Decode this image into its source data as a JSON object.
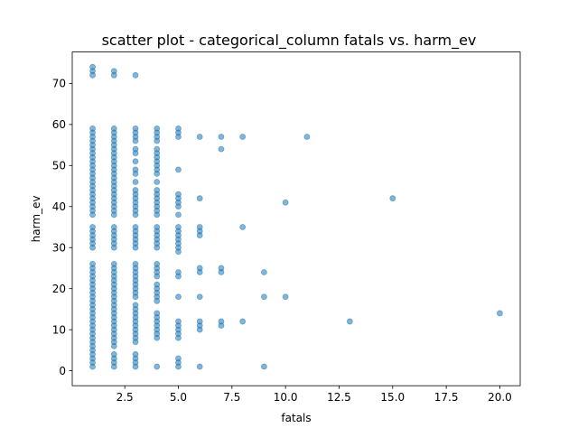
{
  "chart_data": {
    "type": "scatter",
    "title": "scatter plot - categorical_column fatals vs. harm_ev",
    "xlabel": "fatals",
    "ylabel": "harm_ev",
    "xlim": [
      0.05,
      20.95
    ],
    "ylim": [
      -3.65,
      77.65
    ],
    "xticks": [
      2.5,
      5.0,
      7.5,
      10.0,
      12.5,
      15.0,
      17.5,
      20.0
    ],
    "xtick_labels": [
      "2.5",
      "5.0",
      "7.5",
      "10.0",
      "12.5",
      "15.0",
      "17.5",
      "20.0"
    ],
    "yticks": [
      0,
      10,
      20,
      30,
      40,
      50,
      60,
      70
    ],
    "ytick_labels": [
      "0",
      "10",
      "20",
      "30",
      "40",
      "50",
      "60",
      "70"
    ],
    "grid": false,
    "marker_color": "#1f77b4",
    "marker_alpha": 0.55,
    "points": [
      [
        1,
        1
      ],
      [
        1,
        2
      ],
      [
        1,
        3
      ],
      [
        1,
        4
      ],
      [
        1,
        5
      ],
      [
        1,
        6
      ],
      [
        1,
        7
      ],
      [
        1,
        8
      ],
      [
        1,
        9
      ],
      [
        1,
        10
      ],
      [
        1,
        11
      ],
      [
        1,
        12
      ],
      [
        1,
        13
      ],
      [
        1,
        14
      ],
      [
        1,
        15
      ],
      [
        1,
        16
      ],
      [
        1,
        17
      ],
      [
        1,
        18
      ],
      [
        1,
        19
      ],
      [
        1,
        20
      ],
      [
        1,
        21
      ],
      [
        1,
        22
      ],
      [
        1,
        23
      ],
      [
        1,
        24
      ],
      [
        1,
        25
      ],
      [
        1,
        26
      ],
      [
        1,
        30
      ],
      [
        1,
        31
      ],
      [
        1,
        32
      ],
      [
        1,
        33
      ],
      [
        1,
        34
      ],
      [
        1,
        35
      ],
      [
        1,
        38
      ],
      [
        1,
        39
      ],
      [
        1,
        40
      ],
      [
        1,
        41
      ],
      [
        1,
        42
      ],
      [
        1,
        43
      ],
      [
        1,
        44
      ],
      [
        1,
        45
      ],
      [
        1,
        46
      ],
      [
        1,
        47
      ],
      [
        1,
        48
      ],
      [
        1,
        49
      ],
      [
        1,
        50
      ],
      [
        1,
        51
      ],
      [
        1,
        52
      ],
      [
        1,
        53
      ],
      [
        1,
        54
      ],
      [
        1,
        55
      ],
      [
        1,
        56
      ],
      [
        1,
        57
      ],
      [
        1,
        58
      ],
      [
        1,
        59
      ],
      [
        1,
        72
      ],
      [
        1,
        73
      ],
      [
        1,
        74
      ],
      [
        2,
        1
      ],
      [
        2,
        2
      ],
      [
        2,
        3
      ],
      [
        2,
        4
      ],
      [
        2,
        6
      ],
      [
        2,
        7
      ],
      [
        2,
        8
      ],
      [
        2,
        9
      ],
      [
        2,
        10
      ],
      [
        2,
        11
      ],
      [
        2,
        12
      ],
      [
        2,
        13
      ],
      [
        2,
        14
      ],
      [
        2,
        15
      ],
      [
        2,
        16
      ],
      [
        2,
        17
      ],
      [
        2,
        18
      ],
      [
        2,
        19
      ],
      [
        2,
        20
      ],
      [
        2,
        21
      ],
      [
        2,
        22
      ],
      [
        2,
        23
      ],
      [
        2,
        24
      ],
      [
        2,
        25
      ],
      [
        2,
        26
      ],
      [
        2,
        30
      ],
      [
        2,
        31
      ],
      [
        2,
        32
      ],
      [
        2,
        33
      ],
      [
        2,
        34
      ],
      [
        2,
        35
      ],
      [
        2,
        38
      ],
      [
        2,
        39
      ],
      [
        2,
        40
      ],
      [
        2,
        41
      ],
      [
        2,
        42
      ],
      [
        2,
        43
      ],
      [
        2,
        44
      ],
      [
        2,
        45
      ],
      [
        2,
        46
      ],
      [
        2,
        47
      ],
      [
        2,
        48
      ],
      [
        2,
        49
      ],
      [
        2,
        50
      ],
      [
        2,
        51
      ],
      [
        2,
        52
      ],
      [
        2,
        53
      ],
      [
        2,
        54
      ],
      [
        2,
        55
      ],
      [
        2,
        56
      ],
      [
        2,
        57
      ],
      [
        2,
        58
      ],
      [
        2,
        59
      ],
      [
        2,
        72
      ],
      [
        2,
        73
      ],
      [
        3,
        1
      ],
      [
        3,
        2
      ],
      [
        3,
        3
      ],
      [
        3,
        4
      ],
      [
        3,
        7
      ],
      [
        3,
        8
      ],
      [
        3,
        9
      ],
      [
        3,
        10
      ],
      [
        3,
        11
      ],
      [
        3,
        12
      ],
      [
        3,
        13
      ],
      [
        3,
        14
      ],
      [
        3,
        15
      ],
      [
        3,
        16
      ],
      [
        3,
        18
      ],
      [
        3,
        19
      ],
      [
        3,
        20
      ],
      [
        3,
        21
      ],
      [
        3,
        22
      ],
      [
        3,
        23
      ],
      [
        3,
        24
      ],
      [
        3,
        25
      ],
      [
        3,
        26
      ],
      [
        3,
        30
      ],
      [
        3,
        31
      ],
      [
        3,
        32
      ],
      [
        3,
        33
      ],
      [
        3,
        34
      ],
      [
        3,
        35
      ],
      [
        3,
        38
      ],
      [
        3,
        39
      ],
      [
        3,
        40
      ],
      [
        3,
        41
      ],
      [
        3,
        42
      ],
      [
        3,
        43
      ],
      [
        3,
        44
      ],
      [
        3,
        46
      ],
      [
        3,
        48
      ],
      [
        3,
        49
      ],
      [
        3,
        51
      ],
      [
        3,
        53
      ],
      [
        3,
        54
      ],
      [
        3,
        56
      ],
      [
        3,
        57
      ],
      [
        3,
        58
      ],
      [
        3,
        59
      ],
      [
        3,
        72
      ],
      [
        4,
        1
      ],
      [
        4,
        8
      ],
      [
        4,
        9
      ],
      [
        4,
        10
      ],
      [
        4,
        11
      ],
      [
        4,
        12
      ],
      [
        4,
        13
      ],
      [
        4,
        14
      ],
      [
        4,
        17
      ],
      [
        4,
        18
      ],
      [
        4,
        19
      ],
      [
        4,
        20
      ],
      [
        4,
        21
      ],
      [
        4,
        23
      ],
      [
        4,
        24
      ],
      [
        4,
        25
      ],
      [
        4,
        26
      ],
      [
        4,
        30
      ],
      [
        4,
        31
      ],
      [
        4,
        32
      ],
      [
        4,
        33
      ],
      [
        4,
        34
      ],
      [
        4,
        35
      ],
      [
        4,
        38
      ],
      [
        4,
        39
      ],
      [
        4,
        40
      ],
      [
        4,
        41
      ],
      [
        4,
        42
      ],
      [
        4,
        43
      ],
      [
        4,
        44
      ],
      [
        4,
        46
      ],
      [
        4,
        48
      ],
      [
        4,
        49
      ],
      [
        4,
        50
      ],
      [
        4,
        51
      ],
      [
        4,
        52
      ],
      [
        4,
        53
      ],
      [
        4,
        54
      ],
      [
        4,
        56
      ],
      [
        4,
        57
      ],
      [
        4,
        58
      ],
      [
        4,
        59
      ],
      [
        5,
        1
      ],
      [
        5,
        2
      ],
      [
        5,
        3
      ],
      [
        5,
        8
      ],
      [
        5,
        9
      ],
      [
        5,
        10
      ],
      [
        5,
        11
      ],
      [
        5,
        12
      ],
      [
        5,
        18
      ],
      [
        5,
        23
      ],
      [
        5,
        24
      ],
      [
        5,
        29
      ],
      [
        5,
        30
      ],
      [
        5,
        31
      ],
      [
        5,
        32
      ],
      [
        5,
        33
      ],
      [
        5,
        34
      ],
      [
        5,
        35
      ],
      [
        5,
        38
      ],
      [
        5,
        40
      ],
      [
        5,
        41
      ],
      [
        5,
        42
      ],
      [
        5,
        43
      ],
      [
        5,
        49
      ],
      [
        5,
        57
      ],
      [
        5,
        58
      ],
      [
        5,
        59
      ],
      [
        6,
        1
      ],
      [
        6,
        10
      ],
      [
        6,
        11
      ],
      [
        6,
        12
      ],
      [
        6,
        18
      ],
      [
        6,
        24
      ],
      [
        6,
        25
      ],
      [
        6,
        33
      ],
      [
        6,
        34
      ],
      [
        6,
        35
      ],
      [
        6,
        42
      ],
      [
        6,
        57
      ],
      [
        7,
        11
      ],
      [
        7,
        12
      ],
      [
        7,
        24
      ],
      [
        7,
        25
      ],
      [
        7,
        54
      ],
      [
        7,
        57
      ],
      [
        8,
        12
      ],
      [
        8,
        35
      ],
      [
        8,
        57
      ],
      [
        9,
        1
      ],
      [
        9,
        18
      ],
      [
        9,
        24
      ],
      [
        10,
        18
      ],
      [
        10,
        41
      ],
      [
        11,
        57
      ],
      [
        13,
        12
      ],
      [
        15,
        42
      ],
      [
        20,
        14
      ]
    ]
  }
}
